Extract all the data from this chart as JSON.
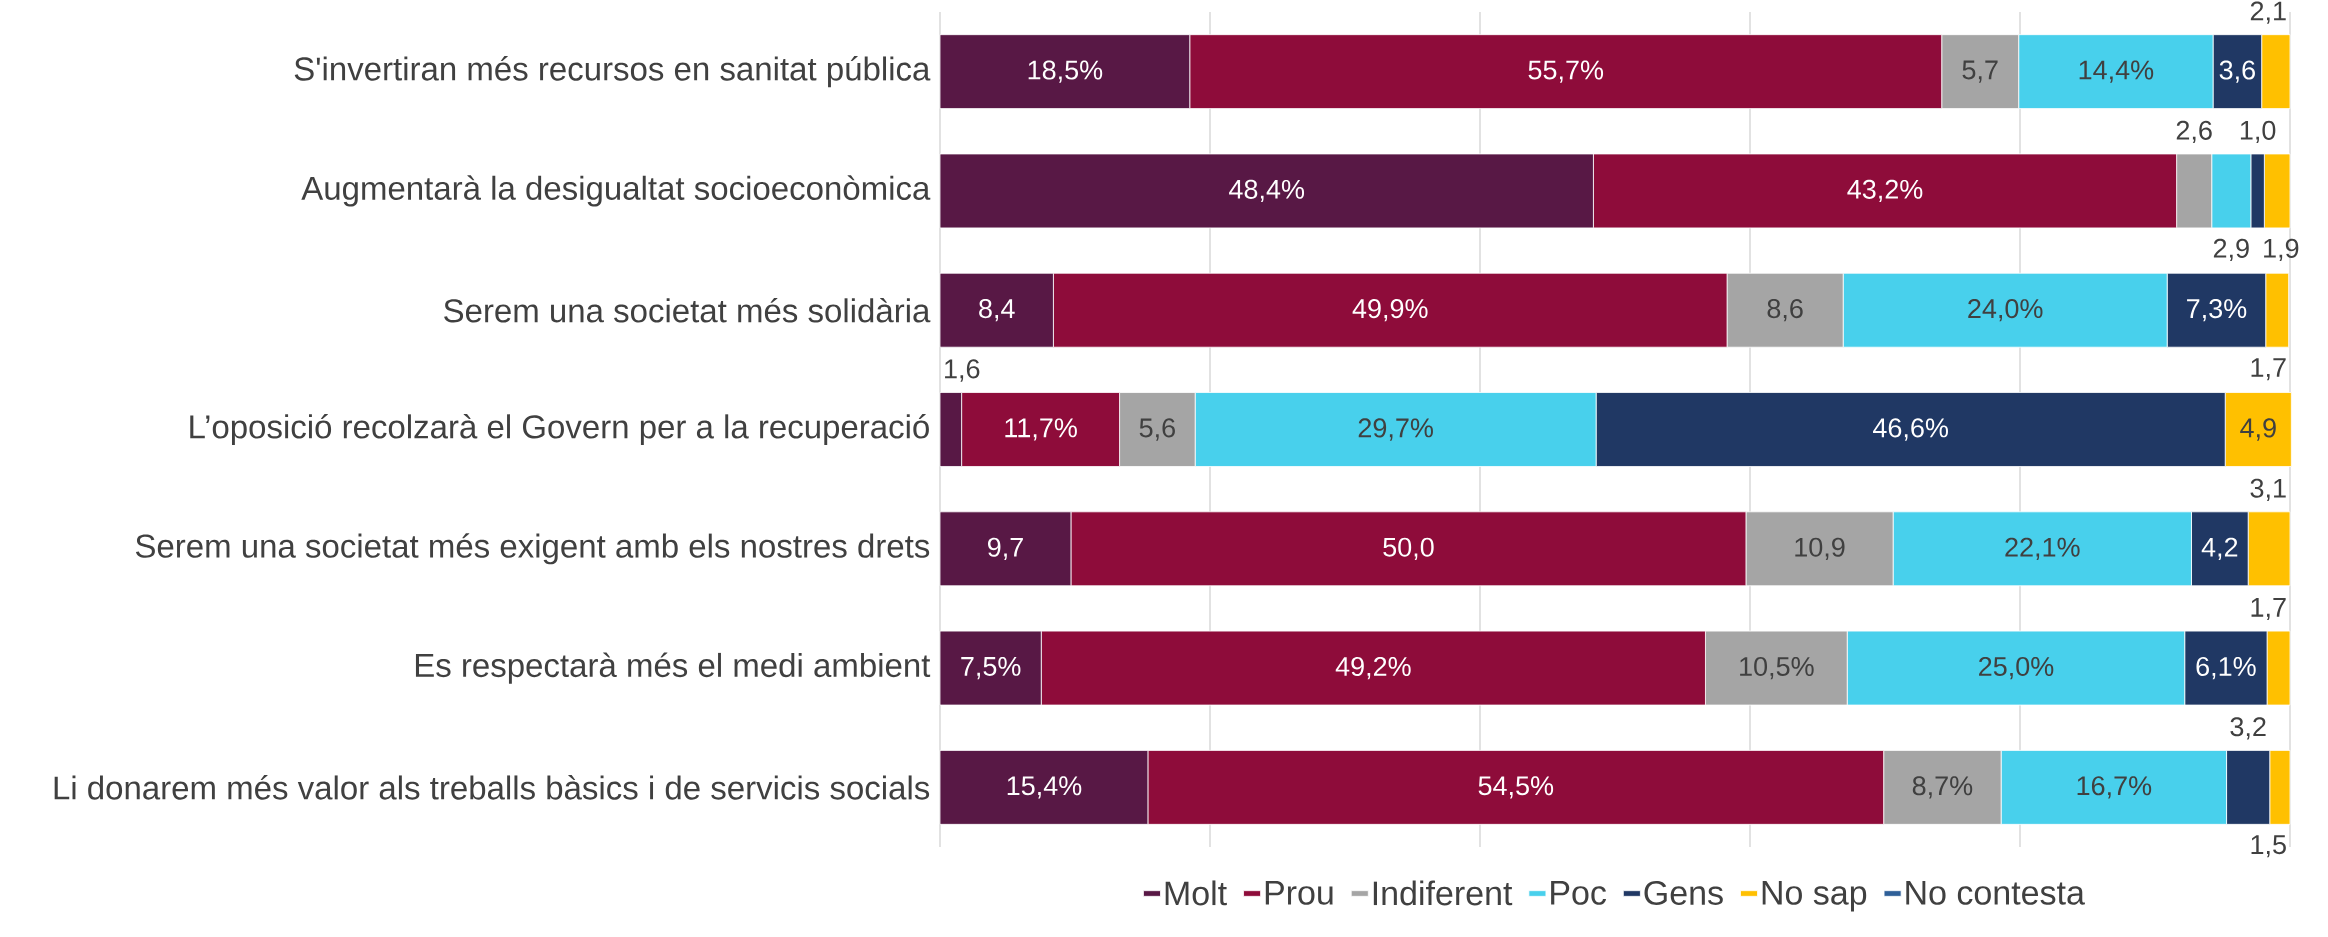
{
  "chart_data": {
    "type": "bar",
    "orientation": "horizontal",
    "stacked": true,
    "grid": "x",
    "legend": "bottom",
    "tick_labels": "y",
    "categories": [
      "S'invertiran més recursos en sanitat pública",
      "Augmentarà la desigualtat socioeconòmica",
      "Serem una societat més solidària",
      "L’oposició recolzarà el Govern per a la recuperació",
      "Serem una societat més exigent amb els nostres drets",
      "Es respectarà més el medi ambient",
      "Li donarem més valor als treballs bàsics i de servicis socials"
    ],
    "xlim": [
      0,
      100
    ],
    "xticks": [
      {
        "value": 0,
        "label": null
      },
      {
        "value": 20,
        "label": null
      },
      {
        "value": 40,
        "label": null
      },
      {
        "value": 60,
        "label": null
      },
      {
        "value": 80,
        "label": null
      },
      {
        "value": 100,
        "label": null
      }
    ],
    "series": [
      {
        "name": "Molt",
        "color": "#581845",
        "values": [
          18.5,
          48.4,
          8.4,
          1.6,
          9.7,
          7.5,
          15.4
        ],
        "value_labels": [
          "18,5%",
          "48,4%",
          "8,4",
          "1,6",
          "9,7",
          "7,5%",
          "15,4%"
        ]
      },
      {
        "name": "Prou",
        "color": "#8e0c3a",
        "values": [
          55.7,
          43.2,
          49.9,
          11.7,
          50.0,
          49.2,
          54.5
        ],
        "value_labels": [
          "55,7%",
          "43,2%",
          "49,9%",
          "11,7%",
          "50,0",
          "49,2%",
          "54,5%"
        ]
      },
      {
        "name": "Indiferent",
        "color": "#a5a5a5",
        "values": [
          5.7,
          2.6,
          8.6,
          5.6,
          10.9,
          10.5,
          8.7
        ],
        "value_labels": [
          "5,7",
          "2,6",
          "8,6",
          "5,6",
          "10,9",
          "10,5%",
          "8,7%"
        ]
      },
      {
        "name": "Poc",
        "color": "#48d0ec",
        "values": [
          14.4,
          2.9,
          24.0,
          29.7,
          22.1,
          25.0,
          16.7
        ],
        "value_labels": [
          "14,4%",
          "2,9",
          "24,0%",
          "29,7%",
          "22,1%",
          "25,0%",
          "16,7%"
        ]
      },
      {
        "name": "Gens",
        "color": "#203864",
        "values": [
          3.6,
          1.0,
          7.3,
          46.6,
          4.2,
          6.1,
          3.2
        ],
        "value_labels": [
          "3,6",
          "1,0",
          "7,3%",
          "46,6%",
          "4,2",
          "6,1%",
          "3,2"
        ]
      },
      {
        "name": "No sap",
        "color": "#ffc000",
        "values": [
          2.1,
          1.9,
          1.7,
          4.9,
          3.1,
          1.7,
          1.5
        ],
        "value_labels": [
          "2,1",
          "1,9",
          "1,7",
          "4,9",
          "3,1",
          "1,7",
          "1,5"
        ]
      },
      {
        "name": "No contesta",
        "color": "#2e5f98",
        "values": [
          0,
          0,
          0,
          0,
          0,
          0,
          0
        ],
        "value_labels": [
          null,
          null,
          null,
          null,
          null,
          null,
          null
        ]
      }
    ]
  }
}
